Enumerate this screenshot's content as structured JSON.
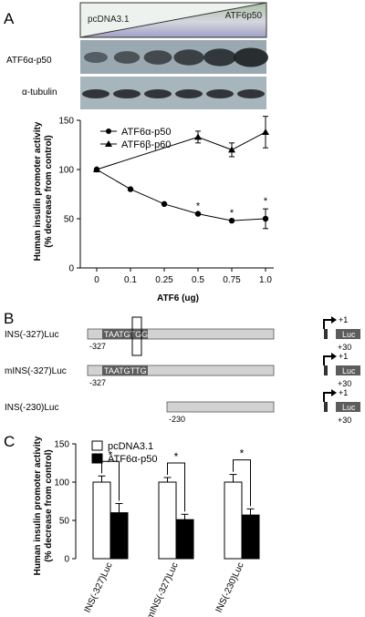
{
  "panels": {
    "a": "A",
    "b": "B",
    "c": "C"
  },
  "colors": {
    "wedge_top": "#a9c3a6",
    "wedge_mid": "#d6d6de",
    "wedge_bottom": "#9fa0c6",
    "blot_bg": "#9aa9b1",
    "band": "#1c1f22",
    "bar_gray": "#cfcfcf",
    "box_dark": "#5c5c5c"
  },
  "blot": {
    "wedge_left": "pcDNA3.1",
    "wedge_right": "ATF6p50",
    "row1": "ATF6α-p50",
    "row2": "α-tubulin",
    "lanes": 6
  },
  "chart_data": [
    {
      "type": "line",
      "ylabel": "Human insulin promoter activity\n(% decrease from control)",
      "xlabel": "ATF6 (ug)",
      "x": [
        "0",
        "0.1",
        "0.25",
        "0.5",
        "0.75",
        "1.0"
      ],
      "ylim": [
        0,
        150
      ],
      "yticks": [
        0,
        50,
        100,
        150
      ],
      "legend": "top-right",
      "series": [
        {
          "name": "ATF6α-p50",
          "marker": "circle",
          "values": [
            100,
            80,
            65,
            55,
            48,
            50
          ],
          "errors": [
            0,
            0,
            0,
            0,
            0,
            10
          ],
          "significance": [
            "",
            "",
            "",
            "*",
            "*",
            "*"
          ]
        },
        {
          "name": "ATF6β-p60",
          "marker": "triangle",
          "values": [
            100,
            null,
            null,
            133,
            120,
            138
          ],
          "errors": [
            0,
            0,
            0,
            6,
            7,
            16
          ],
          "significance": [
            "",
            "",
            "",
            "",
            "",
            ""
          ]
        }
      ]
    },
    {
      "type": "bar",
      "ylabel": "Human insulin promoter activity\n(% decrease from control)",
      "categories": [
        "INS(-327)Luc",
        "mINS(-327)Luc",
        "INS(-230)Luc"
      ],
      "ylim": [
        0,
        150
      ],
      "yticks": [
        0,
        50,
        100,
        150
      ],
      "legend": "top-left",
      "series": [
        {
          "name": "pcDNA3.1",
          "values": [
            100,
            100,
            100
          ],
          "errors": [
            8,
            6,
            10
          ]
        },
        {
          "name": "ATF6α-p50",
          "values": [
            60,
            51,
            57
          ],
          "errors": [
            12,
            7,
            8
          ]
        }
      ],
      "significance": [
        "*",
        "*",
        "*"
      ]
    }
  ],
  "constructs": [
    {
      "label": "INS(-327)Luc",
      "start": "-327",
      "end": "+30",
      "element": "TAATGTGG",
      "tss": "+1",
      "reporter": "Luc"
    },
    {
      "label": "mINS(-327)Luc",
      "start": "-327",
      "end": "+30",
      "element": "TAATGTTG",
      "tss": "+1",
      "reporter": "Luc"
    },
    {
      "label": "INS(-230)Luc",
      "start": "-230",
      "end": "+30",
      "element": "",
      "tss": "+1",
      "reporter": "Luc"
    }
  ]
}
